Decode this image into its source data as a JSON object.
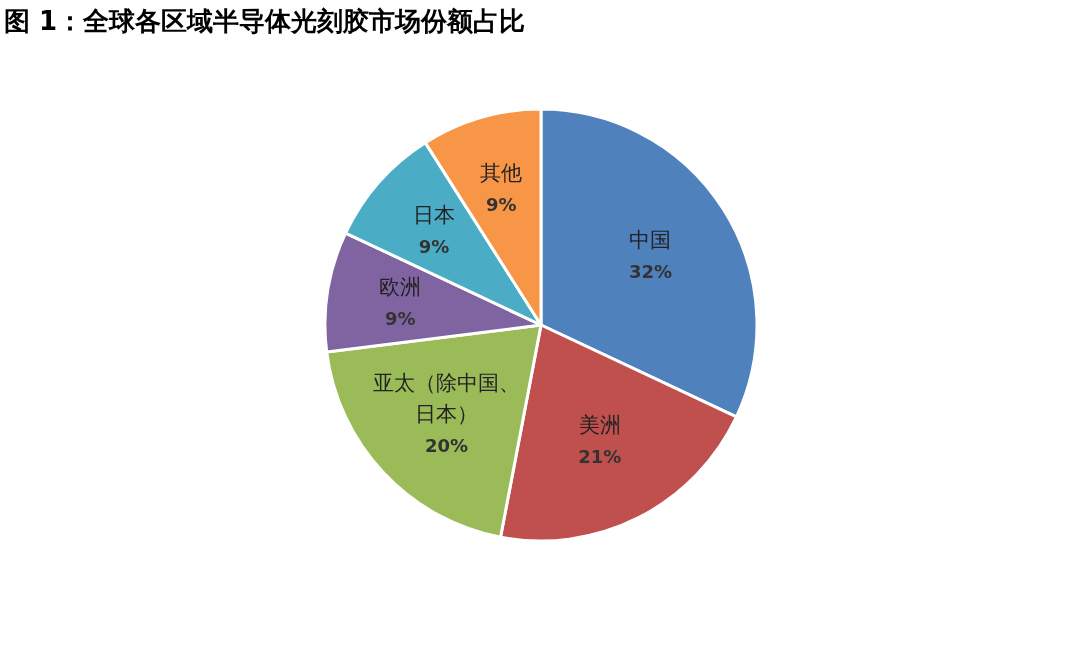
{
  "chart_data": {
    "type": "pie",
    "title": "图 1：全球各区域半导体光刻胶市场份额占比",
    "categories": [
      "中国",
      "美洲",
      "亚太（除中国、日本）",
      "欧洲",
      "日本",
      "其他"
    ],
    "values": [
      32,
      21,
      20,
      9,
      9,
      9
    ],
    "colors": [
      "#4f81bd",
      "#c0504d",
      "#9bbb59",
      "#8064a2",
      "#4bacc6",
      "#f79646"
    ],
    "value_labels": [
      "32%",
      "21%",
      "20%",
      "9%",
      "9%",
      "9%"
    ]
  }
}
